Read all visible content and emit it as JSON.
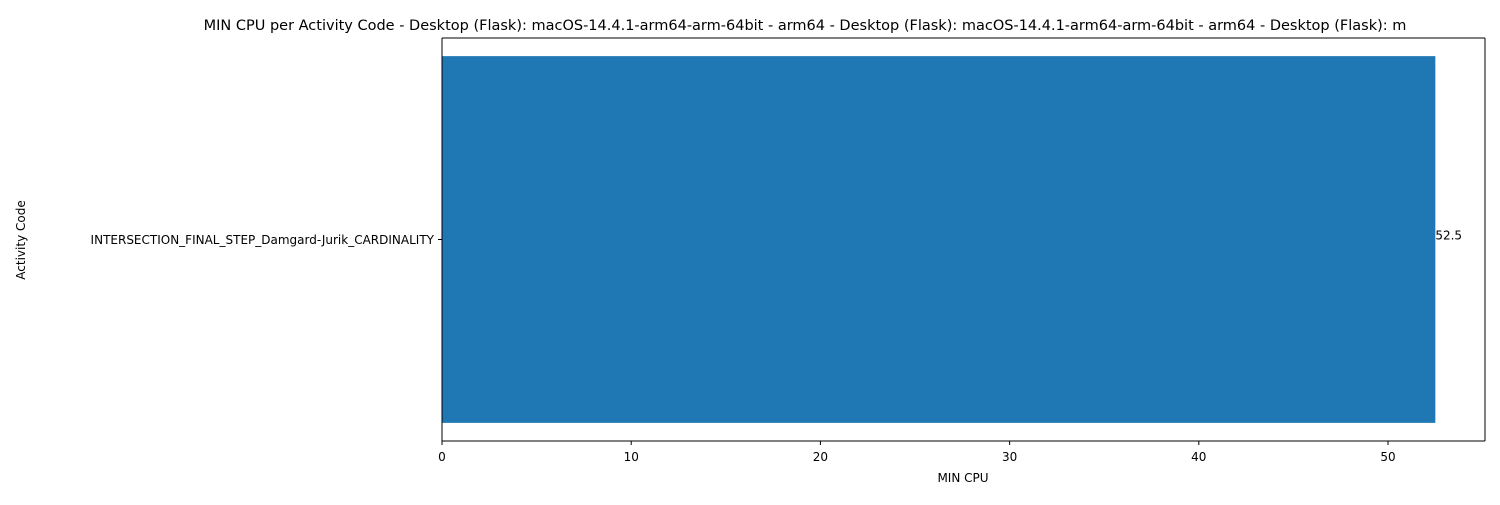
{
  "colors": {
    "bar": "#1f77b4",
    "axis": "#000000",
    "background": "#ffffff"
  },
  "chart_data": {
    "type": "bar",
    "orientation": "horizontal",
    "title": "MIN CPU per Activity Code - Desktop (Flask): macOS-14.4.1-arm64-arm-64bit - arm64 - Desktop (Flask): macOS-14.4.1-arm64-arm-64bit - arm64 - Desktop (Flask): m",
    "xlabel": "MIN CPU",
    "ylabel": "Activity Code",
    "categories": [
      "INTERSECTION_FINAL_STEP_Damgard-Jurik_CARDINALITY"
    ],
    "values": [
      52.5
    ],
    "value_labels": [
      "52.5"
    ],
    "xlim": [
      0,
      55.125
    ],
    "xticks": [
      0,
      10,
      20,
      30,
      40,
      50
    ],
    "xtick_labels": [
      "0",
      "10",
      "20",
      "30",
      "40",
      "50"
    ],
    "grid": false,
    "legend": "none"
  }
}
